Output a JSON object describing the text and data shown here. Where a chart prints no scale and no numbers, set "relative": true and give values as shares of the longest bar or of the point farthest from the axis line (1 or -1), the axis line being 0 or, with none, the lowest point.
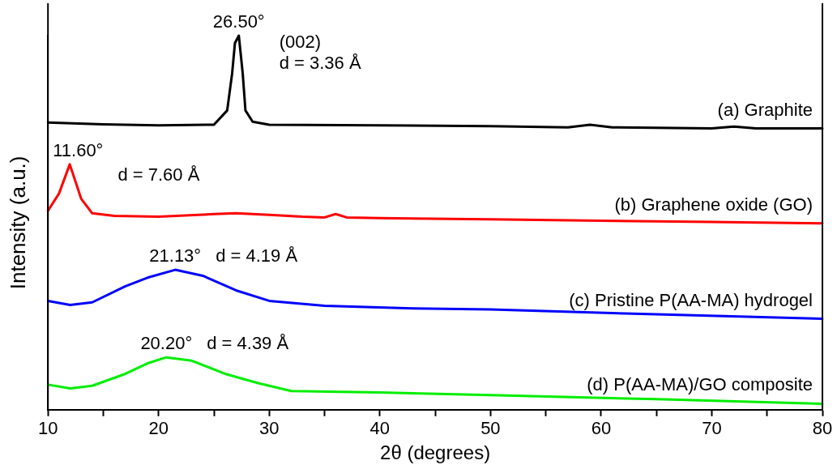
{
  "chart_data": {
    "type": "line",
    "relative": true,
    "xlabel": "2θ (degrees)",
    "ylabel": "Intensity (a.u.)",
    "xlim": [
      10,
      80
    ],
    "xticks": [
      10,
      {
        "value": 15,
        "label": null
      },
      20,
      {
        "value": 25,
        "label": null
      },
      30,
      {
        "value": 35,
        "label": null
      },
      40,
      {
        "value": 45,
        "label": null
      },
      50,
      {
        "value": 55,
        "label": null
      },
      60,
      {
        "value": 65,
        "label": null
      },
      70,
      {
        "value": 75,
        "label": null
      },
      80
    ],
    "grid": false,
    "legend": false,
    "marker": "none",
    "line_style": "solid",
    "series": [
      {
        "name": "(a) Graphite",
        "color": "#000000",
        "x": [
          10,
          15,
          20,
          25,
          26.2,
          26.65,
          26.9,
          27.25,
          27.6,
          27.85,
          28.5,
          30,
          40,
          50,
          57,
          59,
          61,
          70,
          72,
          74,
          80
        ],
        "values": [
          0.768,
          0.763,
          0.76,
          0.762,
          0.8,
          0.9,
          0.98,
          1,
          0.9,
          0.8,
          0.77,
          0.762,
          0.76,
          0.758,
          0.755,
          0.762,
          0.755,
          0.752,
          0.757,
          0.752,
          0.752
        ]
      },
      {
        "name": "(b) Graphene oxide (GO)",
        "color": "#ff0000",
        "x": [
          10,
          11,
          11.97,
          13,
          14,
          16,
          20,
          25,
          27,
          30,
          33,
          35,
          36,
          37,
          40,
          50,
          60,
          70,
          80
        ],
        "values": [
          0.532,
          0.578,
          0.656,
          0.564,
          0.525,
          0.518,
          0.516,
          0.523,
          0.525,
          0.521,
          0.516,
          0.514,
          0.523,
          0.514,
          0.512,
          0.509,
          0.505,
          0.502,
          0.498
        ]
      },
      {
        "name": "(c) Pristine P(AA-MA) hydrogel",
        "color": "#0000ff",
        "x": [
          10,
          12,
          14,
          17,
          19,
          21.5,
          24,
          27,
          30,
          35,
          43,
          50,
          65,
          80
        ],
        "values": [
          0.291,
          0.28,
          0.287,
          0.33,
          0.353,
          0.374,
          0.358,
          0.319,
          0.291,
          0.278,
          0.271,
          0.268,
          0.255,
          0.243
        ]
      },
      {
        "name": "(d) P(AA-MA)/GO composite",
        "color": "#00ee00",
        "x": [
          10,
          12,
          14,
          17,
          19,
          20.7,
          23,
          26,
          29,
          32,
          40,
          50,
          65,
          80
        ],
        "values": [
          0.067,
          0.057,
          0.064,
          0.096,
          0.124,
          0.14,
          0.131,
          0.096,
          0.071,
          0.05,
          0.046,
          0.039,
          0.028,
          0.016
        ]
      }
    ],
    "annotations": [
      {
        "text": "26.50°",
        "x": 27.25,
        "y": 1
      },
      {
        "text": "(002)",
        "x": 27.25,
        "y": 1
      },
      {
        "text": "d = 3.36 Å",
        "x": 27.25,
        "y": 1
      },
      {
        "text": "11.60°",
        "x": 11.97,
        "y": 0.656
      },
      {
        "text": "d = 7.60 Å",
        "x": 11.97,
        "y": 0.656
      },
      {
        "text": "21.13°",
        "x": 21.5,
        "y": 0.374
      },
      {
        "text": "d = 4.19 Å",
        "x": 21.5,
        "y": 0.374
      },
      {
        "text": "20.20°",
        "x": 20.7,
        "y": 0.14
      },
      {
        "text": "d = 4.39 Å",
        "x": 20.7,
        "y": 0.14
      }
    ]
  }
}
